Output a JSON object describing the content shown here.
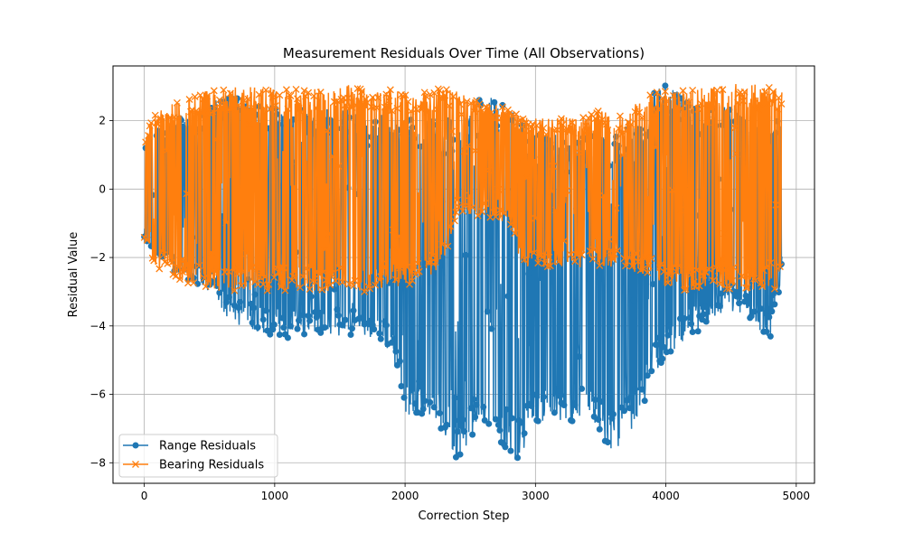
{
  "chart_data": {
    "type": "line",
    "title": "Measurement Residuals Over Time (All Observations)",
    "xlabel": "Correction Step",
    "ylabel": "Residual Value",
    "xlim": [
      -240,
      5140
    ],
    "ylim": [
      -8.6,
      3.6
    ],
    "xticks": [
      0,
      1000,
      2000,
      3000,
      4000,
      5000
    ],
    "xtick_labels": [
      "0",
      "1000",
      "2000",
      "3000",
      "4000",
      "5000"
    ],
    "yticks": [
      -8,
      -6,
      -4,
      -2,
      0,
      2
    ],
    "ytick_labels": [
      "−8",
      "−6",
      "−4",
      "−2",
      "0",
      "2"
    ],
    "grid": true,
    "legend_position": "lower-left",
    "series": [
      {
        "name": "Range Residuals",
        "color": "#1f77b4",
        "marker": "circle",
        "approx_envelope": {
          "x": [
            0,
            200,
            400,
            550,
            650,
            900,
            1100,
            1300,
            1500,
            1700,
            1900,
            2000,
            2200,
            2400,
            2600,
            2800,
            2850,
            3000,
            3200,
            3400,
            3600,
            3800,
            3900,
            4000,
            4200,
            4400,
            4600,
            4800,
            4890
          ],
          "upper": [
            1.5,
            2.0,
            2.2,
            2.6,
            2.8,
            2.5,
            2.4,
            2.3,
            2.4,
            2.3,
            2.2,
            2.1,
            2.0,
            2.2,
            2.7,
            2.6,
            2.0,
            1.6,
            1.7,
            1.7,
            1.6,
            1.9,
            2.8,
            3.1,
            2.7,
            2.5,
            2.4,
            2.3,
            2.2
          ],
          "lower": [
            -1.5,
            -2.4,
            -2.8,
            -3.2,
            -3.9,
            -4.2,
            -4.4,
            -4.2,
            -4.3,
            -4.3,
            -4.8,
            -6.6,
            -6.6,
            -7.9,
            -6.8,
            -7.7,
            -8.1,
            -6.8,
            -6.8,
            -6.8,
            -7.7,
            -6.7,
            -5.5,
            -4.9,
            -4.3,
            -3.7,
            -3.6,
            -4.5,
            -2.5
          ]
        }
      },
      {
        "name": "Bearing Residuals",
        "color": "#ff7f0e",
        "marker": "x",
        "approx_envelope": {
          "x": [
            0,
            100,
            300,
            500,
            550,
            800,
            1000,
            1200,
            1400,
            1600,
            1700,
            1900,
            2100,
            2300,
            2400,
            2600,
            2800,
            2900,
            3100,
            3300,
            3500,
            3700,
            3800,
            4000,
            4200,
            4400,
            4600,
            4800,
            4890
          ],
          "upper": [
            1.6,
            2.3,
            2.7,
            2.9,
            3.0,
            3.0,
            3.0,
            2.9,
            3.0,
            3.1,
            3.0,
            2.9,
            2.8,
            3.0,
            2.9,
            2.5,
            2.4,
            2.1,
            2.1,
            2.1,
            2.3,
            2.1,
            2.7,
            2.9,
            3.0,
            3.0,
            3.1,
            3.0,
            2.9
          ],
          "lower": [
            -1.6,
            -2.3,
            -2.7,
            -3.0,
            -3.0,
            -3.0,
            -3.0,
            -3.0,
            -3.0,
            -3.0,
            -3.0,
            -2.9,
            -2.8,
            -2.2,
            -0.7,
            -0.8,
            -1.0,
            -2.3,
            -2.3,
            -2.3,
            -2.3,
            -2.3,
            -2.5,
            -2.9,
            -3.0,
            -3.0,
            -3.0,
            -3.0,
            -2.9
          ]
        }
      }
    ]
  }
}
